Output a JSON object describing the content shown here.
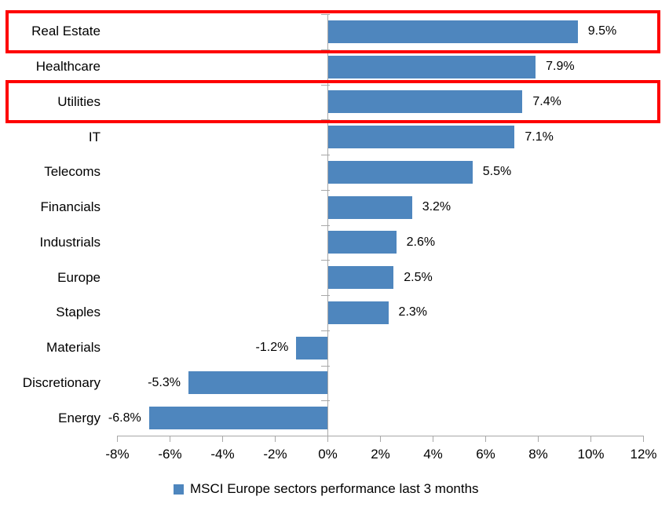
{
  "chart_data": {
    "type": "bar",
    "orientation": "horizontal",
    "title": "",
    "categories": [
      "Real Estate",
      "Healthcare",
      "Utilities",
      "IT",
      "Telecoms",
      "Financials",
      "Industrials",
      "Europe",
      "Staples",
      "Materials",
      "Discretionary",
      "Energy"
    ],
    "values": [
      9.5,
      7.9,
      7.4,
      7.1,
      5.5,
      3.2,
      2.6,
      2.5,
      2.3,
      -1.2,
      -5.3,
      -6.8
    ],
    "value_labels": [
      "9.5%",
      "7.9%",
      "7.4%",
      "7.1%",
      "5.5%",
      "3.2%",
      "2.6%",
      "2.5%",
      "2.3%",
      "-1.2%",
      "-5.3%",
      "-6.8%"
    ],
    "x_tick_labels": [
      "-8%",
      "-6%",
      "-4%",
      "-2%",
      "0%",
      "2%",
      "4%",
      "6%",
      "8%",
      "10%",
      "12%"
    ],
    "x_tick_values": [
      -8,
      -6,
      -4,
      -2,
      0,
      2,
      4,
      6,
      8,
      10,
      12
    ],
    "xlim": [
      -8,
      12
    ],
    "grid": false,
    "legend": "MSCI Europe sectors performance last 3 months",
    "legend_position": "bottom",
    "bar_color": "#4E86BE",
    "axis_color": "#A8A8A8",
    "highlight_color": "#FE0000",
    "highlighted_categories": [
      "Real Estate",
      "Utilities"
    ]
  }
}
